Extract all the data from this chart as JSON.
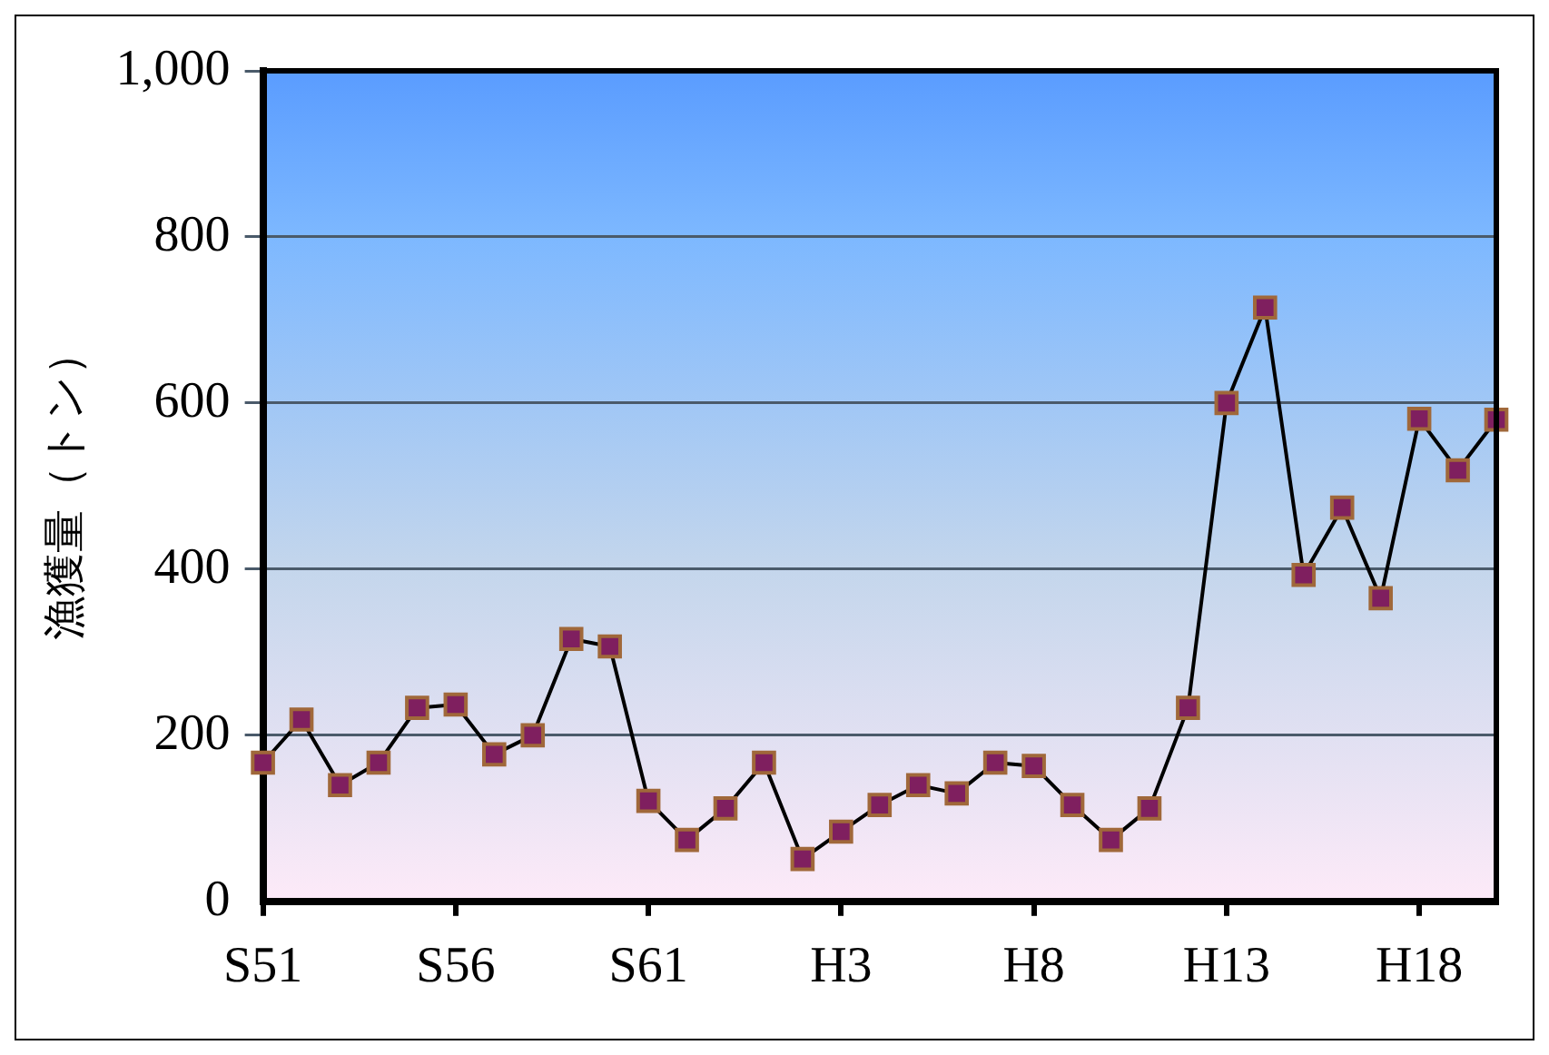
{
  "chart_data": {
    "type": "line",
    "ylabel": "漁獲量（トン）",
    "categories": [
      "S51",
      null,
      null,
      null,
      null,
      "S56",
      null,
      null,
      null,
      null,
      "S61",
      null,
      null,
      null,
      null,
      "H3",
      null,
      null,
      null,
      null,
      "H8",
      null,
      null,
      null,
      null,
      "H13",
      null,
      null,
      null,
      null,
      "H18",
      null,
      null
    ],
    "series": [
      {
        "color": "#7f1f5f",
        "values": [
          167,
          219,
          140,
          167,
          233,
          237,
          177,
          200,
          316,
          307,
          121,
          74,
          112,
          167,
          51,
          84,
          116,
          140,
          130,
          167,
          163,
          116,
          74,
          112,
          233,
          600,
          715,
          393,
          474,
          365,
          581,
          519,
          580
        ]
      }
    ],
    "ylim": [
      0,
      1000
    ],
    "yticks": [
      0,
      200,
      400,
      600,
      800,
      {
        "value": 1000,
        "label": "1,000"
      }
    ],
    "grid": "y",
    "legend": false,
    "marker": "square",
    "line_style": "solid"
  }
}
